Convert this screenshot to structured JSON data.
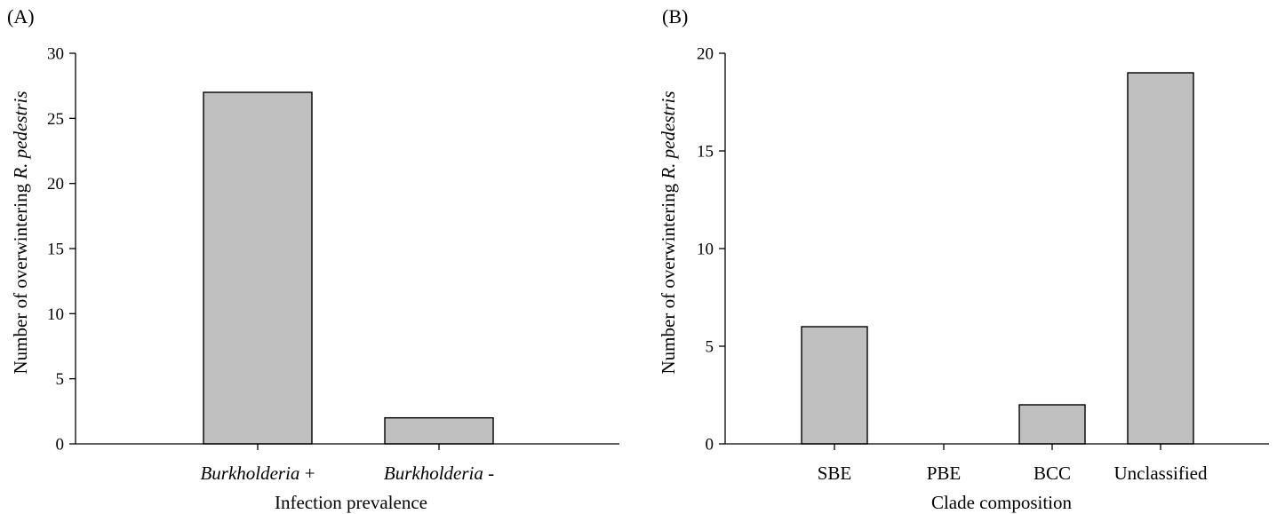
{
  "chart_data": [
    {
      "panel_label": "(A)",
      "type": "bar",
      "xlabel": "Infection prevalence",
      "ylabel": {
        "plain": "Number of overwintering ",
        "italic": "R. pedestris"
      },
      "categories": [
        {
          "italic": "Burkholderia",
          "plain": " +"
        },
        {
          "italic": "Burkholderia",
          "plain": " -"
        }
      ],
      "values": [
        27,
        2
      ],
      "ylim": [
        0,
        30
      ],
      "yticks": [
        0,
        5,
        10,
        15,
        20,
        25,
        30
      ],
      "bar_color": "#c0c0c0",
      "grid": false,
      "legend": "none"
    },
    {
      "panel_label": "(B)",
      "type": "bar",
      "xlabel": "Clade composition",
      "ylabel": {
        "plain": "Number of overwintering ",
        "italic": "R. pedestris"
      },
      "categories": [
        {
          "italic": "",
          "plain": "SBE"
        },
        {
          "italic": "",
          "plain": "PBE"
        },
        {
          "italic": "",
          "plain": "BCC"
        },
        {
          "italic": "",
          "plain": "Unclassified"
        }
      ],
      "values": [
        6,
        0,
        2,
        19
      ],
      "ylim": [
        0,
        20
      ],
      "yticks": [
        0,
        5,
        10,
        15,
        20
      ],
      "bar_color": "#c0c0c0",
      "grid": false,
      "legend": "none"
    }
  ]
}
